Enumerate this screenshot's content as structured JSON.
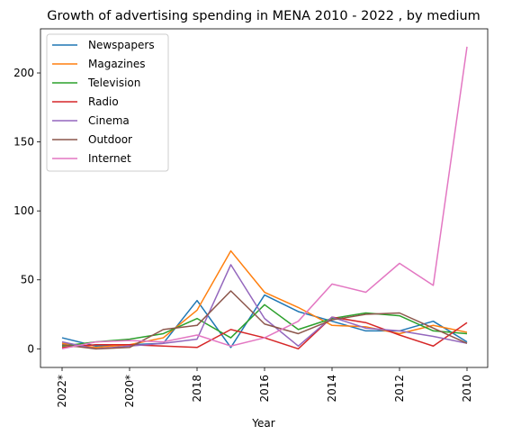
{
  "chart_data": {
    "type": "line",
    "title": "Growth of advertising spending in MENA 2010 - 2022 , by medium",
    "xlabel": "Year",
    "ylabel": "",
    "x": [
      "2022*",
      "2021*",
      "2020*",
      "2019",
      "2018",
      "2017",
      "2016",
      "2015",
      "2014",
      "2013",
      "2012",
      "2011",
      "2010"
    ],
    "xticks": [
      "2022*",
      "2020*",
      "2018",
      "2016",
      "2014",
      "2012",
      "2010"
    ],
    "yticks": [
      0,
      50,
      100,
      150,
      200
    ],
    "ylim": [
      -13.5,
      232
    ],
    "legend_position": "upper-left",
    "grid": false,
    "series": [
      {
        "name": "Newspapers",
        "color": "#1f77b4",
        "values": [
          8,
          2,
          3,
          4,
          35,
          1,
          39,
          27,
          20,
          13,
          13,
          20,
          5
        ]
      },
      {
        "name": "Magazines",
        "color": "#ff7f0e",
        "values": [
          4,
          1,
          3,
          8,
          28,
          71,
          41,
          30,
          17,
          16,
          11,
          17,
          12
        ]
      },
      {
        "name": "Television",
        "color": "#2ca02c",
        "values": [
          2,
          5,
          7,
          11,
          22,
          8,
          32,
          14,
          22,
          26,
          24,
          13,
          11
        ]
      },
      {
        "name": "Radio",
        "color": "#d62728",
        "values": [
          1,
          3,
          3,
          2,
          1,
          14,
          8,
          0,
          23,
          19,
          10,
          2,
          19
        ]
      },
      {
        "name": "Cinema",
        "color": "#9467bd",
        "values": [
          5,
          0,
          2,
          4,
          7,
          61,
          22,
          2,
          23,
          15,
          13,
          9,
          4
        ]
      },
      {
        "name": "Outdoor",
        "color": "#8c564b",
        "values": [
          3,
          0,
          1,
          14,
          17,
          42,
          18,
          11,
          21,
          25,
          26,
          15,
          4
        ]
      },
      {
        "name": "Internet",
        "color": "#e377c2",
        "values": [
          0,
          5,
          6,
          5,
          10,
          2,
          8,
          20,
          47,
          41,
          62,
          46,
          219
        ]
      }
    ]
  }
}
